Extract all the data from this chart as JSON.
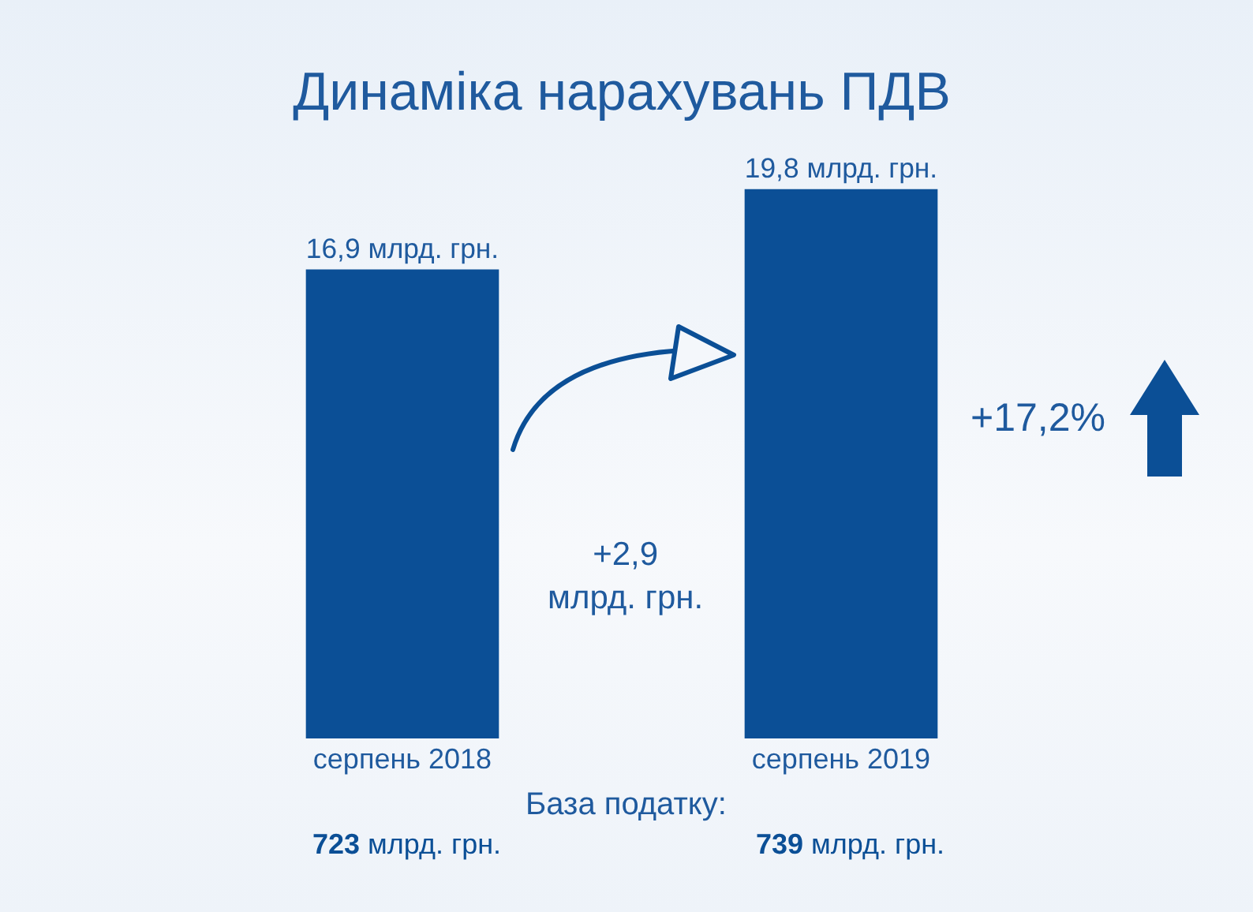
{
  "chart_data": {
    "type": "bar",
    "title": "Динаміка нарахувань ПДВ",
    "categories": [
      "серпень 2018",
      "серпень 2019"
    ],
    "values": [
      16.9,
      19.8
    ],
    "value_labels": [
      "16,9 млрд. грн.",
      "19,8 млрд. грн."
    ],
    "color": "#0b4f96",
    "annotations": [
      "+2,9\nмлрд. грн.",
      "+17,2%",
      "База податку:",
      "723 млрд. грн.",
      "739 млрд. грн."
    ],
    "grid": false,
    "legend": false
  }
}
